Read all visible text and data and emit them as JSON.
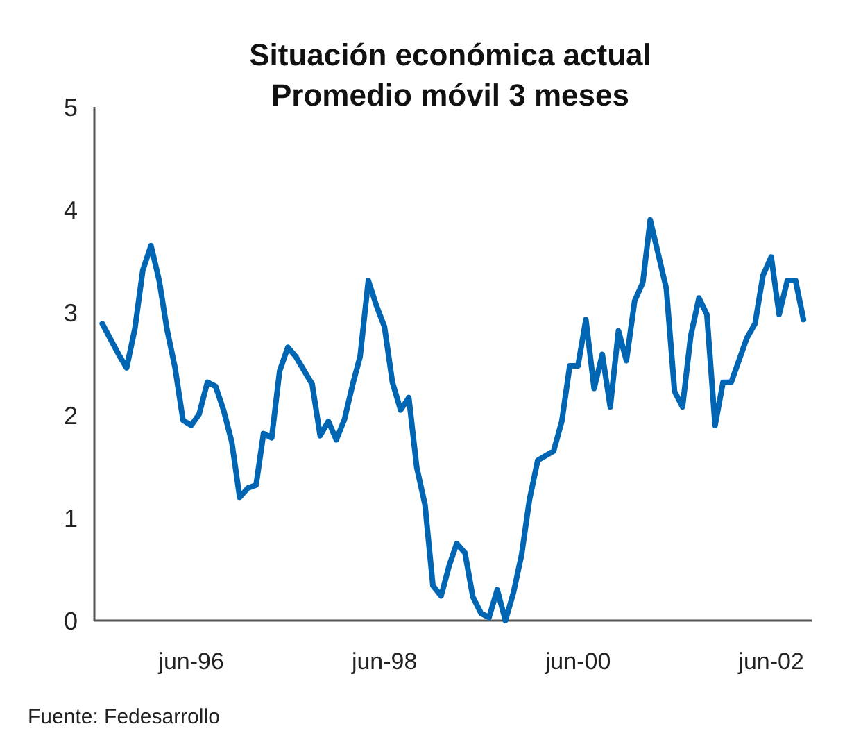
{
  "chart_data": {
    "type": "line",
    "title": "Situación económica actual",
    "subtitle": "Promedio móvil 3 meses",
    "annotations": [
      "Fuente: Fedesarrollo"
    ],
    "xlim": [
      "1995-06",
      "2002-11"
    ],
    "xticks": [
      {
        "value": "1996-06",
        "label": "jun-96"
      },
      {
        "value": "1998-06",
        "label": "jun-98"
      },
      {
        "value": "2000-06",
        "label": "jun-00"
      },
      {
        "value": "2002-06",
        "label": "jun-02"
      }
    ],
    "ylim": [
      0,
      5
    ],
    "yticks": [
      0,
      1,
      2,
      3,
      4,
      5
    ],
    "grid": false,
    "marker": "none",
    "line_style": "solid",
    "series": [
      {
        "color": "#0066b3",
        "x": [
          "1995-07",
          "1995-09",
          "1995-10",
          "1995-11",
          "1995-12",
          "1996-01",
          "1996-02",
          "1996-03",
          "1996-04",
          "1996-05",
          "1996-06",
          "1996-07",
          "1996-08",
          "1996-09",
          "1996-10",
          "1996-11",
          "1996-12",
          "1997-01",
          "1997-02",
          "1997-03",
          "1997-04",
          "1997-05",
          "1997-06",
          "1997-07",
          "1997-09",
          "1997-10",
          "1997-11",
          "1997-12",
          "1998-01",
          "1998-02",
          "1998-03",
          "1998-04",
          "1998-05",
          "1998-06",
          "1998-07",
          "1998-08",
          "1998-09",
          "1998-10",
          "1998-11",
          "1998-12",
          "1999-01",
          "1999-02",
          "1999-03",
          "1999-04",
          "1999-05",
          "1999-06",
          "1999-07",
          "1999-08",
          "1999-09",
          "1999-10",
          "1999-11",
          "1999-12",
          "2000-01",
          "2000-03",
          "2000-04",
          "2000-05",
          "2000-06",
          "2000-07",
          "2000-08",
          "2000-09",
          "2000-10",
          "2000-11",
          "2000-12",
          "2001-01",
          "2001-02",
          "2001-03",
          "2001-04",
          "2001-05",
          "2001-06",
          "2001-07",
          "2001-08",
          "2001-09",
          "2001-10",
          "2001-11",
          "2001-12",
          "2002-01",
          "2002-03",
          "2002-04",
          "2002-05",
          "2002-06",
          "2002-07",
          "2002-08",
          "2002-09",
          "2002-10"
        ],
        "values": [
          2.89,
          2.59,
          2.46,
          2.84,
          3.41,
          3.65,
          3.31,
          2.84,
          2.46,
          1.95,
          1.9,
          2.01,
          2.32,
          2.28,
          2.05,
          1.74,
          1.2,
          1.29,
          1.32,
          1.82,
          1.78,
          2.43,
          2.66,
          2.57,
          2.3,
          1.8,
          1.94,
          1.76,
          1.96,
          2.3,
          2.57,
          3.31,
          3.07,
          2.86,
          2.32,
          2.05,
          2.17,
          1.49,
          1.13,
          0.34,
          0.24,
          0.54,
          0.75,
          0.66,
          0.23,
          0.07,
          0.03,
          0.3,
          0,
          0.27,
          0.64,
          1.18,
          1.56,
          1.65,
          1.94,
          2.48,
          2.48,
          2.93,
          2.26,
          2.59,
          2.08,
          2.82,
          2.53,
          3.11,
          3.29,
          3.9,
          3.56,
          3.23,
          2.23,
          2.08,
          2.77,
          3.14,
          2.98,
          1.9,
          2.32,
          2.32,
          2.75,
          2.89,
          3.36,
          3.54,
          2.98,
          3.31,
          3.31,
          2.93
        ]
      }
    ]
  }
}
